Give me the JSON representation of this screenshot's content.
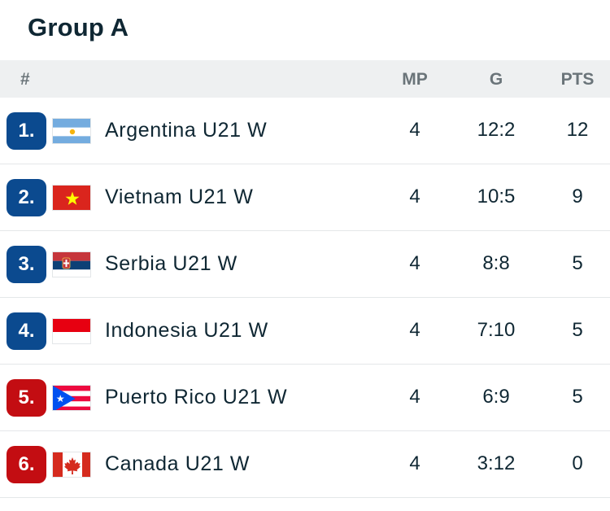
{
  "title": "Group A",
  "header": {
    "rank": "#",
    "mp": "MP",
    "g": "G",
    "pts": "PTS"
  },
  "colors": {
    "rank_blue": "#0b4a8f",
    "rank_red": "#c30d12",
    "header_bg": "#eef0f1"
  },
  "rows": [
    {
      "rank": "1.",
      "team": "Argentina U21 W",
      "flag": "argentina-flag-icon",
      "mp": "4",
      "g": "12:2",
      "pts": "12",
      "badge": "blue"
    },
    {
      "rank": "2.",
      "team": "Vietnam U21 W",
      "flag": "vietnam-flag-icon",
      "mp": "4",
      "g": "10:5",
      "pts": "9",
      "badge": "blue"
    },
    {
      "rank": "3.",
      "team": "Serbia U21 W",
      "flag": "serbia-flag-icon",
      "mp": "4",
      "g": "8:8",
      "pts": "5",
      "badge": "blue"
    },
    {
      "rank": "4.",
      "team": "Indonesia U21 W",
      "flag": "indonesia-flag-icon",
      "mp": "4",
      "g": "7:10",
      "pts": "5",
      "badge": "blue"
    },
    {
      "rank": "5.",
      "team": "Puerto Rico U21 W",
      "flag": "puerto-rico-flag-icon",
      "mp": "4",
      "g": "6:9",
      "pts": "5",
      "badge": "red"
    },
    {
      "rank": "6.",
      "team": "Canada U21 W",
      "flag": "canada-flag-icon",
      "mp": "4",
      "g": "3:12",
      "pts": "0",
      "badge": "red"
    }
  ]
}
